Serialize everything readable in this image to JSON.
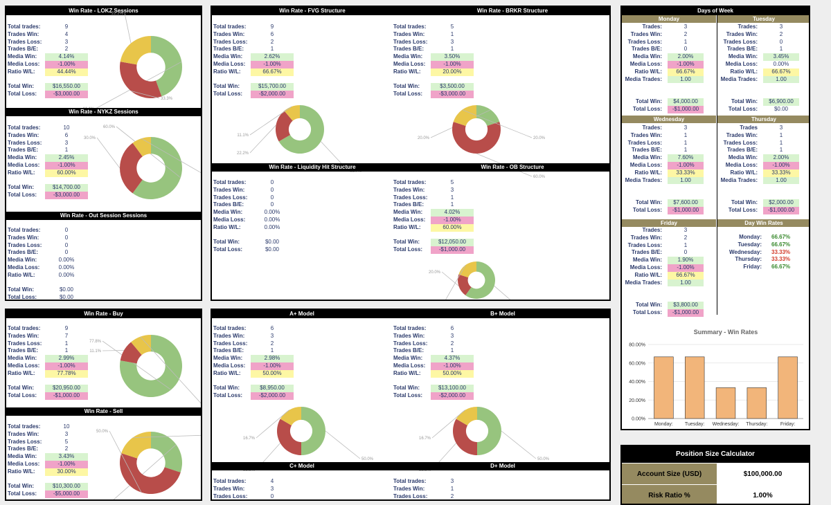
{
  "colors": {
    "win": "#97c47e",
    "loss": "#b84d4a",
    "be": "#e8c54a"
  },
  "labels": {
    "total_trades": "Total trades:",
    "trades": "Trades:",
    "trades_plain": "Trades",
    "trades_win": "Trades Win:",
    "trades_loss": "Trades Loss:",
    "trades_be": "Trades B/E:",
    "media_win": "Media Win:",
    "media_loss": "Media Loss:",
    "ratio": "Ratio W/L:",
    "media_trades": "Media Trades:",
    "total_win": "Total Win:",
    "total_loss": "Total Loss:"
  },
  "cards": {
    "lokz": {
      "title": "Win Rate - LOKZ Sessions",
      "trades": "9",
      "win": "4",
      "loss": "3",
      "be": "2",
      "media_win": "4.14%",
      "media_loss": "-1.00%",
      "ratio": "44.44%",
      "total_win": "$16,550.00",
      "total_loss": "-$3,000.00",
      "pie": [
        4,
        3,
        2
      ],
      "pie_labels": [
        "44.4%",
        "33.3%",
        "22.2%"
      ]
    },
    "nykz": {
      "title": "Win Rate - NYKZ Sessions",
      "trades": "10",
      "win": "6",
      "loss": "3",
      "be": "1",
      "media_win": "2.45%",
      "media_loss": "-1.00%",
      "ratio": "60.00%",
      "total_win": "$14,700.00",
      "total_loss": "-$3,000.00",
      "pie": [
        6,
        3,
        1
      ],
      "pie_labels": [
        "60.0%",
        "30.0%",
        "10.0%"
      ]
    },
    "out": {
      "title": "Win Rate - Out Session Sessions",
      "trades": "0",
      "win": "0",
      "loss": "0",
      "be": "0",
      "media_win": "0.00%",
      "media_loss": "0.00%",
      "ratio": "0.00%",
      "total_win": "$0.00",
      "total_loss": "$0.00"
    },
    "fvg": {
      "title": "Win Rate - FVG Structure",
      "trades": "9",
      "win": "6",
      "loss": "2",
      "be": "1",
      "media_win": "2.62%",
      "media_loss": "-1.00%",
      "ratio": "66.67%",
      "total_win": "$15,700.00",
      "total_loss": "-$2,000.00",
      "pie": [
        6,
        2,
        1
      ],
      "pie_labels": [
        "66.7%",
        "22.2%",
        "11.1%"
      ]
    },
    "brkr": {
      "title": "Win Rate - BRKR Structure",
      "trades": "5",
      "win": "1",
      "loss": "3",
      "be": "1",
      "media_win": "3.50%",
      "media_loss": "-1.00%",
      "ratio": "20.00%",
      "total_win": "$3,500.00",
      "total_loss": "-$3,000.00",
      "pie": [
        1,
        3,
        1
      ],
      "pie_labels": [
        "20.0%",
        "60.0%",
        "20.0%"
      ]
    },
    "liq": {
      "title": "Win Rate - Liquidity Hit Structure",
      "trades": "0",
      "win": "0",
      "loss": "0",
      "be": "0",
      "media_win": "0.00%",
      "media_loss": "0.00%",
      "ratio": "0.00%",
      "total_win": "$0.00",
      "total_loss": "$0.00"
    },
    "ob": {
      "title": "Win Rate - OB Structure",
      "trades": "5",
      "win": "3",
      "loss": "1",
      "be": "1",
      "media_win": "4.02%",
      "media_loss": "-1.00%",
      "ratio": "60.00%",
      "total_win": "$12,050.00",
      "total_loss": "-$1,000.00",
      "pie": [
        3,
        1,
        1
      ],
      "pie_labels": [
        "60.0%",
        "20.0%",
        "20.0%"
      ]
    },
    "buy": {
      "title": "Win Rate - Buy",
      "trades": "9",
      "win": "7",
      "loss": "1",
      "be": "1",
      "media_win": "2.99%",
      "media_loss": "-1.00%",
      "ratio": "77.78%",
      "total_win": "$20,950.00",
      "total_loss": "-$1,000.00",
      "pie": [
        7,
        1,
        1
      ],
      "pie_labels": [
        "77.8%",
        "11.1%",
        "11.1%"
      ]
    },
    "sell": {
      "title": "Win Rate - Sell",
      "trades": "10",
      "win": "3",
      "loss": "5",
      "be": "2",
      "media_win": "3.43%",
      "media_loss": "-1.00%",
      "ratio": "30.00%",
      "total_win": "$10,300.00",
      "total_loss": "-$5,000.00",
      "pie": [
        3,
        5,
        2
      ],
      "pie_labels": [
        "30.0%",
        "50.0%",
        "20.0%"
      ]
    },
    "aplus": {
      "title": "A+ Model",
      "trades": "6",
      "win": "3",
      "loss": "2",
      "be": "1",
      "media_win": "2.98%",
      "media_loss": "-1.00%",
      "ratio": "50.00%",
      "total_win": "$8,950.00",
      "total_loss": "-$2,000.00",
      "pie": [
        3,
        2,
        1
      ],
      "pie_labels": [
        "50.0%",
        "33.3%",
        "16.7%"
      ]
    },
    "bplus": {
      "title": "B+ Model",
      "trades": "6",
      "win": "3",
      "loss": "2",
      "be": "1",
      "media_win": "4.37%",
      "media_loss": "-1.00%",
      "ratio": "50.00%",
      "total_win": "$13,100.00",
      "total_loss": "-$2,000.00",
      "pie": [
        3,
        2,
        1
      ],
      "pie_labels": [
        "50.0%",
        "33.3%",
        "16.7%"
      ]
    },
    "cplus": {
      "title": "C+ Model",
      "trades": "4",
      "win": "3",
      "loss": "0"
    },
    "dplus": {
      "title": "D+ Model",
      "trades": "3",
      "win": "1",
      "loss": "2"
    }
  },
  "days": {
    "title": "Days of Week",
    "monday": {
      "name": "Monday",
      "trades": "3",
      "win": "2",
      "loss": "1",
      "be": "0",
      "media_win": "2.00%",
      "media_loss": "-1.00%",
      "ratio": "66.67%",
      "media_trades": "1.00",
      "total_win": "$4,000.00",
      "total_loss": "-$1,000.00"
    },
    "tuesday": {
      "name": "Tuesday",
      "trades": "3",
      "win": "2",
      "loss": "0",
      "be": "1",
      "media_win": "3.45%",
      "media_loss": "0.00%",
      "ratio": "66.67%",
      "media_trades": "1.00",
      "total_win": "$6,900.00",
      "total_loss": "$0.00"
    },
    "wednesday": {
      "name": "Wednesday",
      "trades": "3",
      "win": "1",
      "loss": "1",
      "be": "1",
      "media_win": "7.60%",
      "media_loss": "-1.00%",
      "ratio": "33.33%",
      "media_trades": "1.00",
      "total_win": "$7,600.00",
      "total_loss": "-$1,000.00"
    },
    "thursday": {
      "name": "Thursday",
      "trades": "3",
      "win": "1",
      "loss": "1",
      "be": "1",
      "media_win": "2.00%",
      "media_loss": "-1.00%",
      "ratio": "33.33%",
      "media_trades": "1.00",
      "total_win": "$2,000.00",
      "total_loss": "-$1,000.00"
    },
    "friday": {
      "name": "Friday",
      "trades": "3",
      "win": "2",
      "loss": "1",
      "be": "0",
      "media_win": "1.90%",
      "media_loss": "-1.00%",
      "ratio": "66.67%",
      "media_trades": "1.00",
      "total_win": "$3,800.00",
      "total_loss": "-$1,000.00"
    },
    "day_win_rates": {
      "title": "Day Win Rates",
      "rows": [
        {
          "day": "Monday:",
          "rate": "66.67%",
          "color": "#3a8a2e"
        },
        {
          "day": "Tuesday:",
          "rate": "66.67%",
          "color": "#3a8a2e"
        },
        {
          "day": "Wednesday:",
          "rate": "33.33%",
          "color": "#d23b2b"
        },
        {
          "day": "Thursday:",
          "rate": "33.33%",
          "color": "#d23b2b"
        },
        {
          "day": "Friday:",
          "rate": "66.67%",
          "color": "#3a8a2e"
        }
      ]
    }
  },
  "chart_data": {
    "type": "bar",
    "title": "Summary - Win Rates",
    "categories": [
      "Monday:",
      "Tuesday:",
      "Wednesday:",
      "Thursday:",
      "Friday:"
    ],
    "values": [
      66.67,
      66.67,
      33.33,
      33.33,
      66.67
    ],
    "ylim": [
      0,
      80
    ],
    "yticks": [
      "0.00%",
      "20.00%",
      "40.00%",
      "60.00%",
      "80.00%"
    ],
    "bar_color": "#f2b57a"
  },
  "calculator": {
    "title": "Position Size Calculator",
    "account_label": "Account Size (USD)",
    "account_value": "$100,000.00",
    "risk_label": "Risk Ratio %",
    "risk_value": "1.00%"
  }
}
